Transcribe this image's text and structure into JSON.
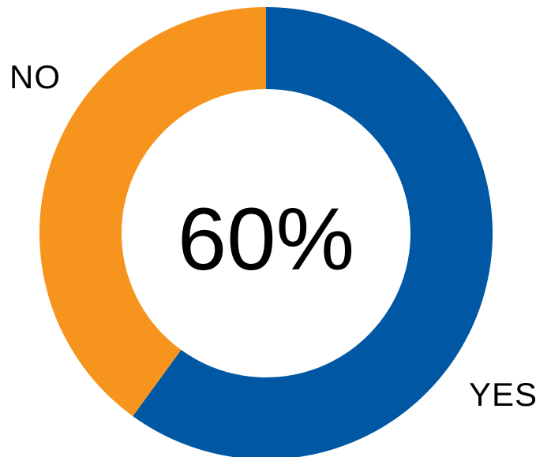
{
  "chart_data": {
    "type": "pie",
    "variant": "donut",
    "categories": [
      "YES",
      "NO"
    ],
    "values": [
      60,
      40
    ],
    "unit": "%",
    "colors": [
      "#0057a3",
      "#f7941d"
    ],
    "center_label": "60%",
    "title": "",
    "legend": "none",
    "slice_labels": {
      "yes": "YES",
      "no": "NO"
    }
  }
}
